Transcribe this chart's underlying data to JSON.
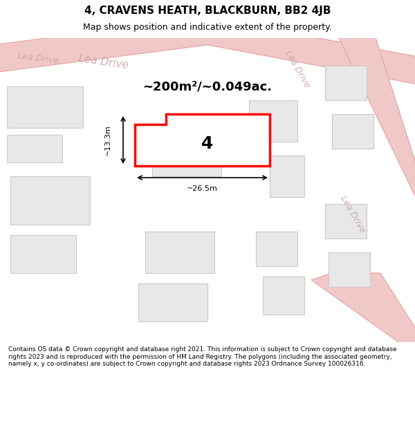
{
  "title": "4, CRAVENS HEATH, BLACKBURN, BB2 4JB",
  "subtitle": "Map shows position and indicative extent of the property.",
  "footer": "Contains OS data © Crown copyright and database right 2021. This information is subject to Crown copyright and database rights 2023 and is reproduced with the permission of HM Land Registry. The polygons (including the associated geometry, namely x, y co-ordinates) are subject to Crown copyright and database rights 2023 Ordnance Survey 100026316.",
  "background_color": "#ffffff",
  "map_bg_color": "#f5f5f5",
  "road_color": "#f0c8c8",
  "road_outline_color": "#e8a0a0",
  "building_fill": "#e8e8e8",
  "building_outline": "#d0c8c8",
  "highlight_fill": "#ffffff",
  "highlight_outline": "#ff0000",
  "area_text": "~200m²/~0.049ac.",
  "property_number": "4",
  "dim_width": "~26.5m",
  "dim_height": "~13.3m"
}
